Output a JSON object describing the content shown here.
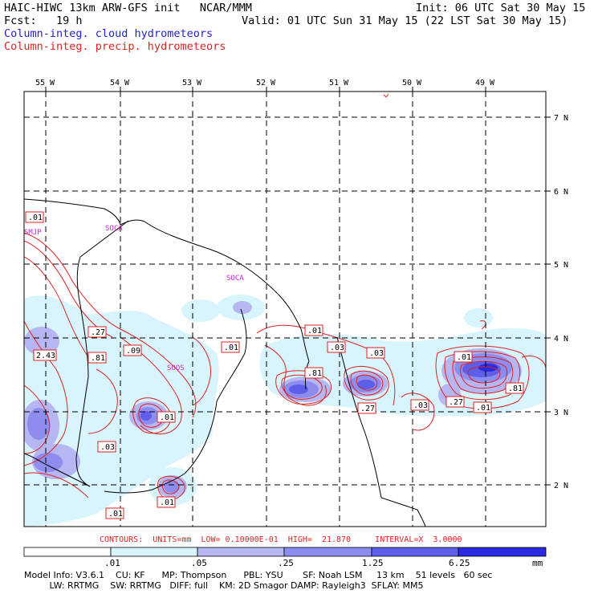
{
  "header": {
    "model_line": "HAIC-HIWC 13km ARW-GFS init   NCAR/MMM",
    "init_line": "Init: 06 UTC Sat 30 May 15",
    "fcst_line": "Fcst:   19 h",
    "valid_line": "Valid: 01 UTC Sun 31 May 15 (22 LST Sat 30 May 15)",
    "field_cloud": "Column-integ. cloud hydrometeors",
    "field_precip": "Column-integ. precip. hydrometeors"
  },
  "map": {
    "lon_labels": [
      "55 W",
      "54 W",
      "53 W",
      "52 W",
      "51 W",
      "50 W",
      "49 W"
    ],
    "lat_labels": [
      "7 N",
      "6 N",
      "5 N",
      "4 N",
      "3 N",
      "2 N"
    ],
    "stations": [
      "SMJP",
      "SOCA",
      "SOCA",
      "SOOS"
    ],
    "contour_labels": [
      ".01",
      "2.43",
      ".27",
      ".81",
      ".09",
      ".01",
      ".01",
      ".01",
      ".03",
      ".01",
      ".81",
      ".03",
      ".27",
      ".03",
      ".27",
      ".01",
      ".81",
      ".01",
      ".03",
      ".01",
      ".03",
      ".01"
    ],
    "colors": {
      "cloud_lightest": "#d8f4fc",
      "cloud_light": "#b6b6f2",
      "cloud_mid": "#8d8df0",
      "cloud_dark": "#5e5ee8",
      "cloud_darkest": "#2a2ae0",
      "precip": "#dd2222",
      "coast": "#000000",
      "grid": "#000000",
      "station": "#cc22cc"
    }
  },
  "contour_info": "CONTOURS:  UNITS=mm  LOW= 0.10000E-01  HIGH=  21.870     INTERVAL=X  3.0000",
  "colorbar": {
    "ticks": [
      ".01",
      ".05",
      ".25",
      "1.25",
      "6.25"
    ],
    "unit": "mm",
    "colors": [
      "#ffffff",
      "#d8f4fc",
      "#b6b6f2",
      "#8d8df0",
      "#5e5ee8",
      "#2a2ae0"
    ]
  },
  "footer": {
    "line1": "Model Info: V3.6.1    CU: KF      MP: Thompson      PBL: YSU       SF: Noah LSM     13 km    51 levels   60 sec",
    "line2": "         LW: RRTMG    SW: RRTMG   DIFF: full    KM: 2D Smagor DAMP: Rayleigh3  SFLAY: MM5"
  }
}
